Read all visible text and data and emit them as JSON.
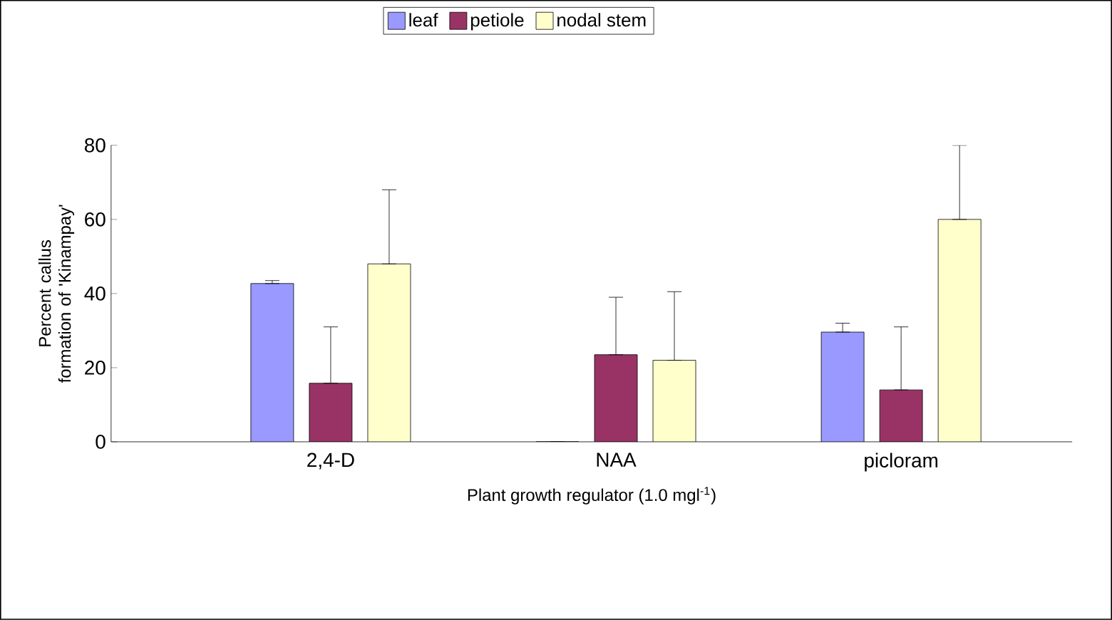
{
  "chart_data": {
    "type": "bar",
    "xlabel": "Plant growth regulator (1.0 mgl$^{-1}$)",
    "ylabel": "Percent callus formation of 'Kinampay'",
    "categories": [
      "2,4-D",
      "NAA",
      "picloram"
    ],
    "series": [
      {
        "name": "leaf",
        "color": "#9999ff",
        "values": [
          42.7,
          0,
          29.6
        ],
        "errors": [
          [
            42.7,
            43.5
          ],
          null,
          [
            29.6,
            32
          ]
        ]
      },
      {
        "name": "petiole",
        "color": "#993366",
        "values": [
          15.8,
          23.5,
          14
        ],
        "errors": [
          [
            15.8,
            31
          ],
          [
            23.5,
            39
          ],
          [
            14,
            31
          ]
        ]
      },
      {
        "name": "nodal stem",
        "color": "#ffffcc",
        "values": [
          48,
          22,
          60
        ],
        "errors": [
          [
            48,
            68
          ],
          [
            22,
            40.5
          ],
          [
            60,
            80
          ]
        ]
      }
    ],
    "ylim": [
      0,
      80
    ],
    "yticks": [
      0,
      20,
      40,
      60,
      80
    ],
    "grid": false,
    "legend": "top"
  }
}
